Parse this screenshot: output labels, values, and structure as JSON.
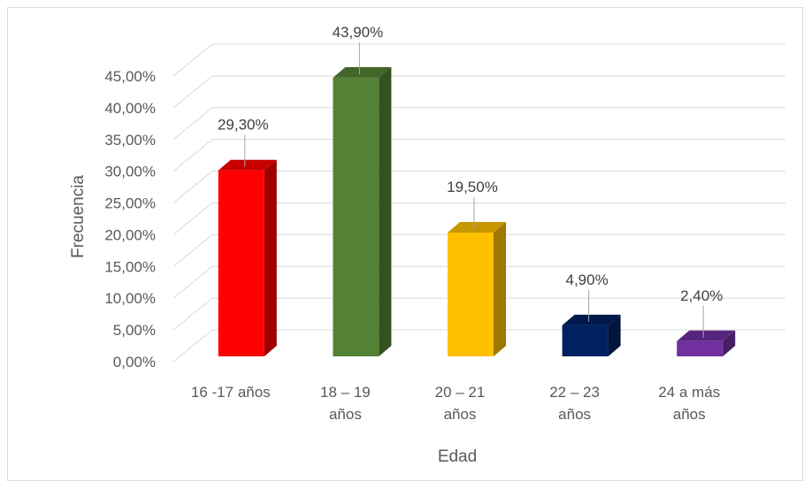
{
  "chart_data": {
    "type": "bar",
    "style": "3d-column",
    "title": "",
    "xlabel": "Edad",
    "ylabel": "Frecuencia",
    "ylim": [
      0,
      45
    ],
    "ytick_step": 5,
    "ytick_labels": [
      "0,00%",
      "5,00%",
      "10,00%",
      "15,00%",
      "20,00%",
      "25,00%",
      "30,00%",
      "35,00%",
      "40,00%",
      "45,00%"
    ],
    "categories": [
      [
        "16 -17 años"
      ],
      [
        "18 – 19",
        "años"
      ],
      [
        "20 – 21",
        "años"
      ],
      [
        "22 – 23",
        "años"
      ],
      [
        "24 a más",
        "años"
      ]
    ],
    "values": [
      29.3,
      43.9,
      19.5,
      4.9,
      2.4
    ],
    "data_labels": [
      "29,30%",
      "43,90%",
      "19,50%",
      "4,90%",
      "2,40%"
    ],
    "colors": [
      "#ff0000",
      "#548235",
      "#ffc000",
      "#002060",
      "#7030a0"
    ],
    "grid": true,
    "legend": "none"
  }
}
